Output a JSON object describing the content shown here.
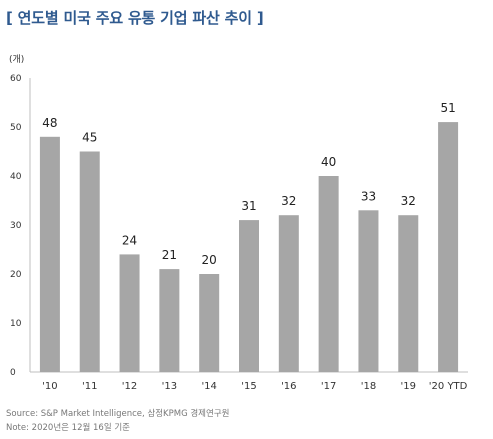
{
  "title": "[ 연도별 미국 주요 유통 기업 파산 추이 ]",
  "unit_label": "(개)",
  "source": "Source: S&P Market Intelligence, 삼정KPMG 경제연구원",
  "note": "Note: 2020년은 12월 16일 기준",
  "colors": {
    "title": "#2f5a8f",
    "bar": "#a6a6a6",
    "axis": "#bfbfbf",
    "text": "#333333"
  },
  "chart_data": {
    "type": "bar",
    "title": "[ 연도별 미국 주요 유통 기업 파산 추이 ]",
    "xlabel": "",
    "ylabel": "(개)",
    "categories": [
      "'10",
      "'11",
      "'12",
      "'13",
      "'14",
      "'15",
      "'16",
      "'17",
      "'18",
      "'19",
      "'20 YTD"
    ],
    "values": [
      48,
      45,
      24,
      21,
      20,
      31,
      32,
      40,
      33,
      32,
      51
    ],
    "ylim": [
      0,
      60
    ],
    "yticks": [
      0,
      10,
      20,
      30,
      40,
      50,
      60
    ],
    "grid": false,
    "legend": "none",
    "data_labels": true
  }
}
